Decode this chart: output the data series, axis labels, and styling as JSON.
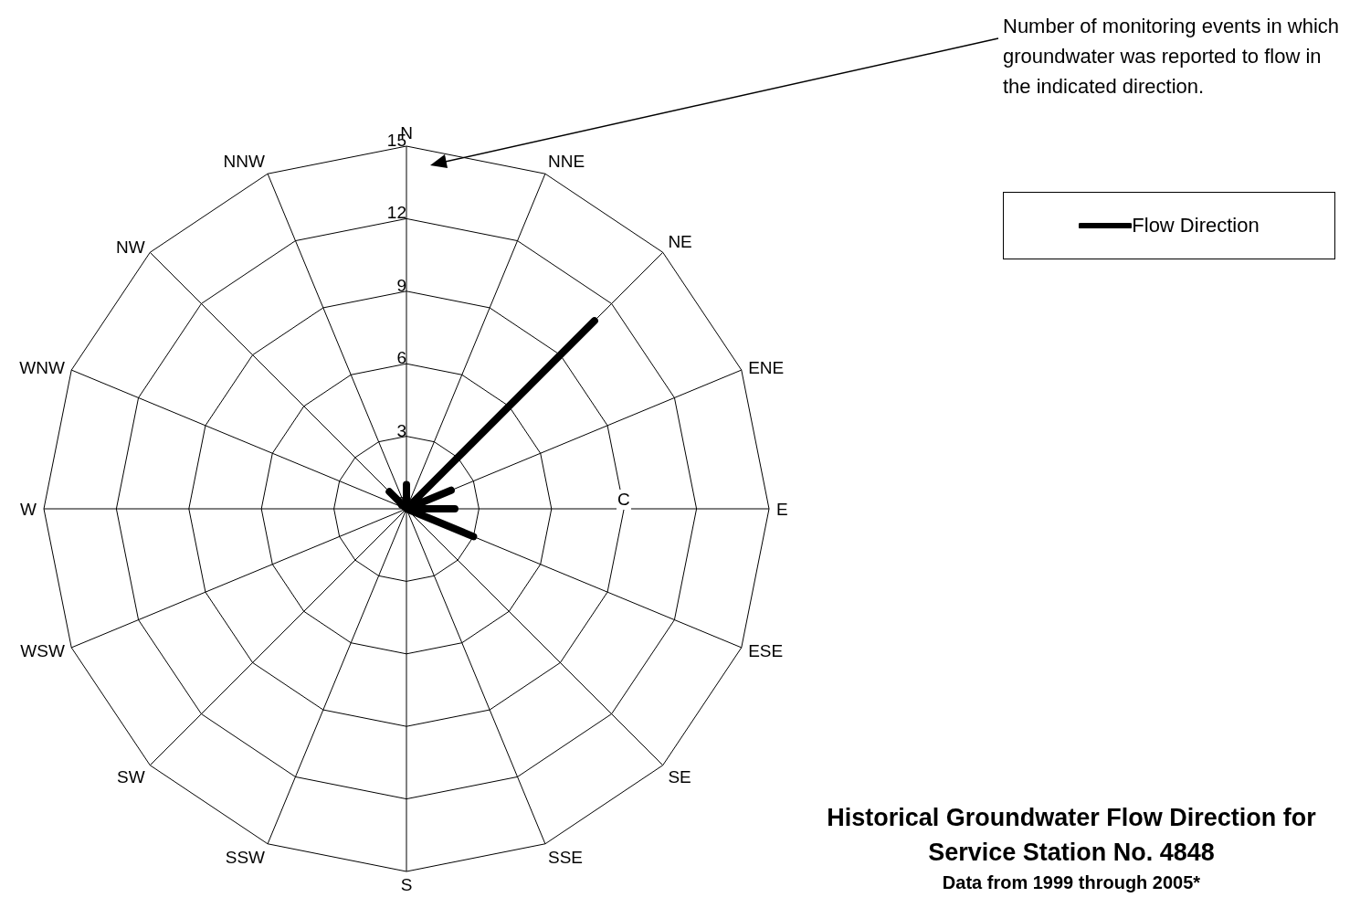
{
  "chart_data": {
    "type": "radar",
    "title": "Historical Groundwater Flow Direction for Service Station No. 4848",
    "subtitle": "Data from 1999 through 2005*",
    "categories": [
      "N",
      "NNE",
      "NE",
      "ENE",
      "E",
      "ESE",
      "SE",
      "SSE",
      "S",
      "SSW",
      "SW",
      "WSW",
      "W",
      "WNW",
      "NW",
      "NNW"
    ],
    "series": [
      {
        "name": "Flow Direction",
        "color": "#000000",
        "values": [
          1,
          0,
          11,
          2,
          2,
          3,
          0,
          0,
          0,
          0,
          0,
          0,
          0,
          0,
          1,
          0
        ]
      }
    ],
    "ylim": [
      0,
      15
    ],
    "yticks": [
      0,
      3,
      6,
      9,
      12,
      15
    ],
    "grid": true,
    "legend": "top right",
    "annotations": [
      "Number of monitoring events in which groundwater was reported to flow in the indicated direction.",
      "C"
    ]
  }
}
